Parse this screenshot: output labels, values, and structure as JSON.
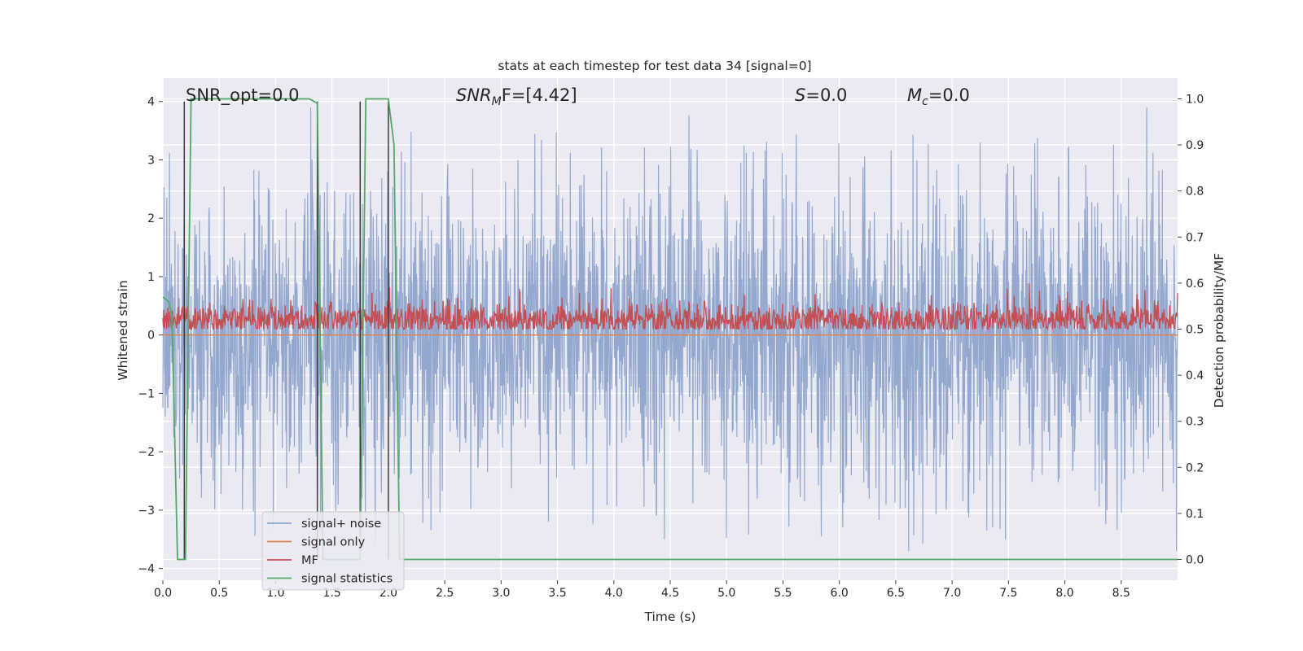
{
  "chart_data": {
    "type": "line",
    "title": "stats at each timestep for test data 34 [signal=0]",
    "xlabel": "Time (s)",
    "ylabel_left": "Whitened strain",
    "ylabel_right": "Detection probability/MF",
    "xlim": [
      0,
      9.0
    ],
    "ylim_left": [
      -4.2,
      4.4
    ],
    "ylim_right": [
      -0.045,
      1.045
    ],
    "x_ticks": [
      "0.0",
      "0.5",
      "1.0",
      "1.5",
      "2.0",
      "2.5",
      "3.0",
      "3.5",
      "4.0",
      "4.5",
      "5.0",
      "5.5",
      "6.0",
      "6.5",
      "7.0",
      "7.5",
      "8.0",
      "8.5"
    ],
    "y_left_ticks": [
      "4",
      "3",
      "2",
      "1",
      "0",
      "−1",
      "−2",
      "−3",
      "−4"
    ],
    "y_right_ticks": [
      "1.0",
      "0.9",
      "0.8",
      "0.7",
      "0.6",
      "0.5",
      "0.4",
      "0.3",
      "0.2",
      "0.1",
      "0.0"
    ],
    "grid": true,
    "annotations": {
      "snr_opt": "SNR_opt=0.0",
      "snr_mf_prefix": "SNR",
      "snr_mf_sub": "M",
      "snr_mf_suffix": "F=[4.42]",
      "s_name": "S",
      "s_value": "=0.0",
      "mc_name": "M",
      "mc_sub": "c",
      "mc_value": "=0.0"
    },
    "legend": {
      "placement": "lower-left",
      "entries": [
        "signal+ noise",
        "signal only",
        "MF",
        "signal statistics"
      ]
    },
    "colors": {
      "noise": "#8fa4cc",
      "signal_only": "#dd8452",
      "mf": "#c44e52",
      "stat": "#55a868",
      "vline": "#3a3a3a",
      "plot_bg": "#eaeaf2"
    },
    "series": [
      {
        "name": "signal+ noise",
        "axis": "left",
        "envelope": "noise, spikes to about ±3.5, continuous to 9.0 s"
      },
      {
        "name": "signal only",
        "axis": "left",
        "values": "flat at 0.0"
      },
      {
        "name": "MF",
        "axis": "right",
        "mean": 0.52,
        "range": [
          0.5,
          0.6
        ]
      },
      {
        "name": "signal statistics",
        "axis": "right",
        "x": [
          0.0,
          0.05,
          0.08,
          0.13,
          0.2,
          0.25,
          1.3,
          1.37,
          1.42,
          1.75,
          1.8,
          2.0,
          2.05,
          2.1,
          2.2,
          9.0
        ],
        "y": [
          0.57,
          0.56,
          0.53,
          0.0,
          0.0,
          1.0,
          1.0,
          0.99,
          0.0,
          0.0,
          1.0,
          1.0,
          0.9,
          0.0,
          0.0,
          0.0
        ]
      }
    ],
    "vertical_lines_x": [
      0.19,
      1.37,
      1.75,
      2.0
    ]
  }
}
